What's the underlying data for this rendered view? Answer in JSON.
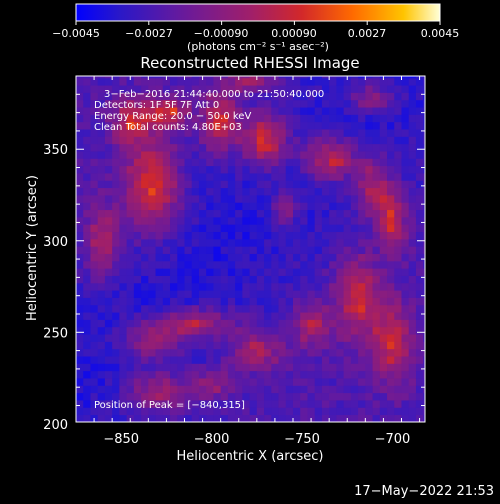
{
  "chart_data": {
    "type": "heatmap",
    "title": "Reconstructed RHESSI Image",
    "xlabel": "Heliocentric X (arcsec)",
    "ylabel": "Heliocentric Y (arcsec)",
    "xlim": [
      -875,
      -682
    ],
    "ylim": [
      201,
      390
    ],
    "xticks": [
      -850,
      -800,
      -750,
      -700
    ],
    "yticks": [
      200,
      250,
      300,
      350
    ],
    "xtick_labels": [
      "−850",
      "−800",
      "−750",
      "−700"
    ],
    "ytick_labels": [
      "200",
      "250",
      "300",
      "350"
    ],
    "colorbar": {
      "min": -0.0045,
      "max": 0.0045,
      "ticks": [
        -0.0045,
        -0.0027,
        -0.0009,
        0.0009,
        0.0027,
        0.0045
      ],
      "tick_labels": [
        "−0.0045",
        "−0.0027",
        "−0.00090",
        "0.00090",
        "0.0027",
        "0.0045"
      ],
      "unit_label": "(photons cm⁻² s⁻¹ asec⁻²)"
    },
    "annotations": [
      "3−Feb−2016 21:44:40.000 to 21:50:40.000",
      "Detectors: 1F 5F 7F  Att 0",
      "Energy Range: 20.0 − 50.0 keV",
      "Clean   Total counts: 4.80E+03"
    ],
    "peak_label": "Position of Peak = [−840,315]",
    "peak": [
      -840,
      315
    ],
    "grid": false,
    "colormap": [
      "#0000ff",
      "#5a1aa0",
      "#9b1f7a",
      "#d6302b",
      "#ff7a00",
      "#ffd600",
      "#ffffd8"
    ]
  },
  "footer": {
    "date": "17−May−2022 21:53"
  }
}
